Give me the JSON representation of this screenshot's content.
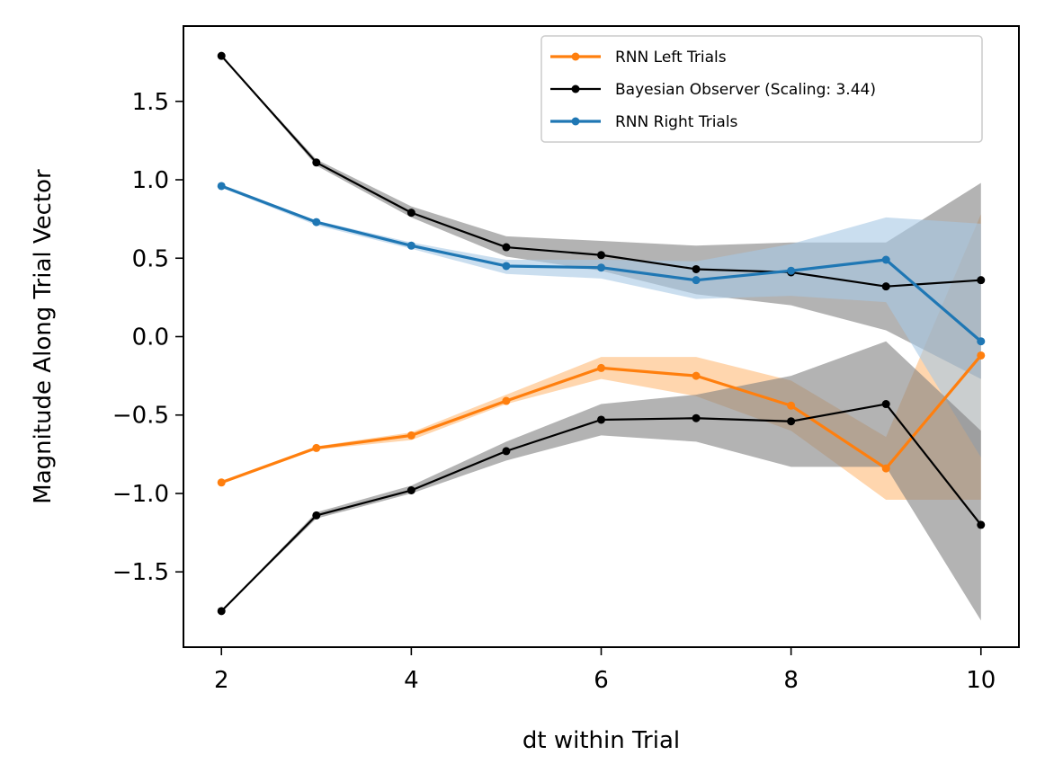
{
  "chart_data": {
    "type": "line",
    "xlabel": "dt within Trial",
    "ylabel": "Magnitude Along Trial Vector",
    "xlim": [
      1.6,
      10.4
    ],
    "ylim": [
      -1.98,
      1.98
    ],
    "xticks": [
      2,
      4,
      6,
      8,
      10
    ],
    "yticks": [
      -1.5,
      -1.0,
      -0.5,
      0.0,
      0.5,
      1.0,
      1.5
    ],
    "ytick_labels": [
      "−1.5",
      "−1.0",
      "−0.5",
      "0.0",
      "0.5",
      "1.0",
      "1.5"
    ],
    "legend_position": "top-right",
    "grid": false,
    "x": [
      2,
      3,
      4,
      5,
      6,
      7,
      8,
      9,
      10
    ],
    "series": [
      {
        "name": "RNN Left Trials",
        "color": "#ff7f0e",
        "band_color": "#ffbb78",
        "values": [
          -0.93,
          -0.71,
          -0.63,
          -0.41,
          -0.2,
          -0.25,
          -0.44,
          -0.84,
          -0.12
        ],
        "band_lower": [
          -0.94,
          -0.72,
          -0.66,
          -0.43,
          -0.27,
          -0.38,
          -0.6,
          -1.04,
          -1.04
        ],
        "band_upper": [
          -0.92,
          -0.7,
          -0.61,
          -0.37,
          -0.13,
          -0.13,
          -0.28,
          -0.64,
          0.78
        ]
      },
      {
        "name": "Bayesian Observer (Scaling: 3.44)",
        "color": "#000000",
        "band_color": "#808080",
        "values": [
          1.79,
          1.11,
          0.79,
          0.57,
          0.52,
          0.43,
          0.41,
          0.32,
          0.36
        ],
        "band_lower": [
          1.79,
          1.09,
          0.76,
          0.51,
          0.42,
          0.27,
          0.2,
          0.04,
          -0.27
        ],
        "band_upper": [
          1.79,
          1.13,
          0.83,
          0.64,
          0.61,
          0.58,
          0.6,
          0.6,
          0.98
        ]
      },
      {
        "name": "RNN Right Trials",
        "color": "#1f77b4",
        "band_color": "#a6c8e5",
        "values": [
          0.96,
          0.73,
          0.58,
          0.45,
          0.44,
          0.36,
          0.42,
          0.49,
          -0.03
        ],
        "band_lower": [
          0.95,
          0.71,
          0.56,
          0.4,
          0.37,
          0.24,
          0.26,
          0.22,
          -0.77
        ],
        "band_upper": [
          0.97,
          0.74,
          0.6,
          0.49,
          0.49,
          0.48,
          0.59,
          0.76,
          0.72
        ]
      },
      {
        "name": "",
        "in_legend": false,
        "color": "#000000",
        "band_color": "#808080",
        "values": [
          -1.75,
          -1.14,
          -0.98,
          -0.73,
          -0.53,
          -0.52,
          -0.54,
          -0.43,
          -1.2
        ],
        "band_lower": [
          -1.75,
          -1.16,
          -1.0,
          -0.79,
          -0.63,
          -0.67,
          -0.83,
          -0.83,
          -1.81
        ],
        "band_upper": [
          -1.75,
          -1.12,
          -0.95,
          -0.67,
          -0.43,
          -0.37,
          -0.25,
          -0.03,
          -0.6
        ]
      }
    ]
  }
}
